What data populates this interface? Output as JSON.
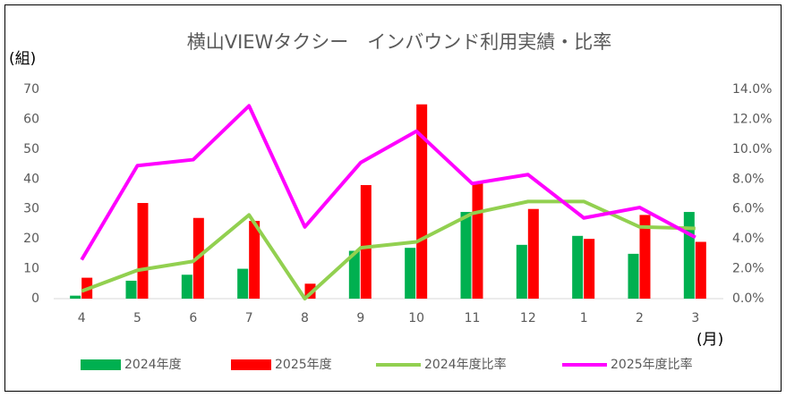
{
  "chart_data": {
    "type": "bar",
    "title": "横山VIEWタクシー　インバウンド利用実績・比率",
    "y_label": "(組)",
    "x_label": "(月)",
    "categories": [
      "4",
      "5",
      "6",
      "7",
      "8",
      "9",
      "10",
      "11",
      "12",
      "1",
      "2",
      "3"
    ],
    "series": [
      {
        "name": "2024年度",
        "type": "bar",
        "color": "#00b050",
        "values": [
          1,
          6,
          8,
          10,
          0,
          16,
          17,
          29,
          18,
          21,
          15,
          29
        ]
      },
      {
        "name": "2025年度",
        "type": "bar",
        "color": "#ff0000",
        "values": [
          7,
          32,
          27,
          26,
          5,
          38,
          65,
          39,
          30,
          20,
          28,
          19
        ]
      },
      {
        "name": "2024年度比率",
        "type": "line",
        "axis": "y2",
        "color": "#92d050",
        "values": [
          0.5,
          1.9,
          2.5,
          5.6,
          0.0,
          3.4,
          3.8,
          5.7,
          6.5,
          6.5,
          4.8,
          4.7
        ]
      },
      {
        "name": "2025年度比率",
        "type": "line",
        "axis": "y2",
        "color": "#ff00ff",
        "values": [
          2.6,
          8.9,
          9.3,
          12.9,
          4.8,
          9.1,
          11.2,
          7.7,
          8.3,
          5.4,
          6.1,
          4.1
        ]
      }
    ],
    "ylim": [
      0,
      70
    ],
    "yticks": [
      0,
      10,
      20,
      30,
      40,
      50,
      60,
      70
    ],
    "y2lim": [
      0,
      14
    ],
    "y2ticks": [
      {
        "value": 0,
        "label": "0.0%"
      },
      {
        "value": 2,
        "label": "2.0%"
      },
      {
        "value": 4,
        "label": "4.0%"
      },
      {
        "value": 6,
        "label": "6.0%"
      },
      {
        "value": 8,
        "label": "8.0%"
      },
      {
        "value": 10,
        "label": "10.0%"
      },
      {
        "value": 12,
        "label": "12.0%"
      },
      {
        "value": 14,
        "label": "14.0%"
      }
    ],
    "grid": false,
    "legend": "bottom"
  }
}
